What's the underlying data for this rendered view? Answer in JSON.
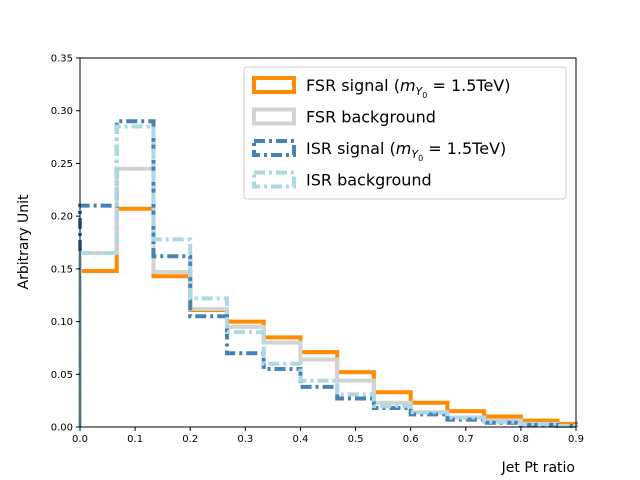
{
  "chart_data": {
    "type": "line",
    "style": "step-histogram",
    "title": "",
    "xlabel": "Jet Pt ratio",
    "ylabel": "Arbitrary Unit",
    "xlim": [
      0.0,
      0.9
    ],
    "ylim": [
      0.0,
      0.35
    ],
    "xticks": [
      "0.0",
      "0.1",
      "0.2",
      "0.3",
      "0.4",
      "0.5",
      "0.6",
      "0.7",
      "0.8",
      "0.9"
    ],
    "yticks": [
      "0.00",
      "0.05",
      "0.10",
      "0.15",
      "0.20",
      "0.25",
      "0.30",
      "0.35"
    ],
    "grid": false,
    "legend_position": "top-right",
    "bin_edges": [
      0.0,
      0.0667,
      0.1333,
      0.2,
      0.2667,
      0.3333,
      0.4,
      0.4667,
      0.5333,
      0.6,
      0.6667,
      0.7333,
      0.8,
      0.8667,
      0.9
    ],
    "series": [
      {
        "name": "FSR signal",
        "legend_prefix": "FSR signal (",
        "legend_math": "m",
        "legend_sub": "Y",
        "legend_subsub": "0",
        "legend_suffix": " = 1.5TeV)",
        "color": "#ff8c00",
        "dash": "solid",
        "values": [
          0.148,
          0.207,
          0.143,
          0.111,
          0.1,
          0.085,
          0.071,
          0.052,
          0.033,
          0.023,
          0.015,
          0.01,
          0.006,
          0.003
        ]
      },
      {
        "name": "FSR background",
        "color": "#d3d3d3",
        "dash": "solid",
        "values": [
          0.165,
          0.245,
          0.147,
          0.112,
          0.095,
          0.08,
          0.064,
          0.044,
          0.023,
          0.014,
          0.009,
          0.006,
          0.003,
          0.001
        ]
      },
      {
        "name": "ISR signal",
        "legend_prefix": "ISR signal (",
        "legend_math": "m",
        "legend_sub": "Y",
        "legend_subsub": "0",
        "legend_suffix": " = 1.5TeV)",
        "color": "#4682b4",
        "dash": "dashdot",
        "values": [
          0.21,
          0.29,
          0.162,
          0.105,
          0.07,
          0.055,
          0.038,
          0.027,
          0.018,
          0.012,
          0.007,
          0.004,
          0.002,
          0.001
        ]
      },
      {
        "name": "ISR background",
        "color": "#add8e6",
        "dash": "dashdot",
        "values": [
          0.165,
          0.285,
          0.178,
          0.122,
          0.09,
          0.06,
          0.044,
          0.031,
          0.02,
          0.014,
          0.009,
          0.005,
          0.003,
          0.001
        ]
      }
    ]
  }
}
